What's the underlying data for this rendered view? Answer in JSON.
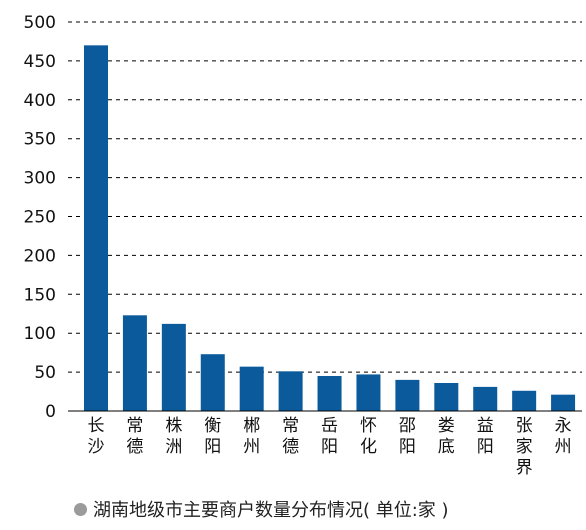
{
  "chart_data": {
    "type": "bar",
    "categories": [
      "长沙",
      "常德",
      "株洲",
      "衡阳",
      "郴州",
      "常德",
      "岳阳",
      "怀化",
      "邵阳",
      "娄底",
      "益阳",
      "张家界",
      "永州"
    ],
    "values": [
      470,
      123,
      112,
      73,
      57,
      51,
      45,
      47,
      40,
      36,
      31,
      26,
      21
    ],
    "ylim": [
      0,
      500
    ],
    "yticks": [
      0,
      50,
      100,
      150,
      200,
      250,
      300,
      350,
      400,
      450,
      500
    ],
    "grid": "dashed-horizontal",
    "bar_color": "#0a5a9c",
    "caption": "湖南地级市主要商户数量分布情况( 单位:家 )"
  }
}
